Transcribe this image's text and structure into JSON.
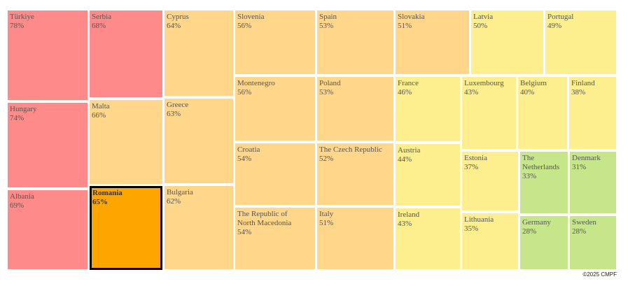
{
  "chart_data": {
    "type": "treemap",
    "selected": "Romania",
    "color_scale": {
      "red": "#ff8a8a",
      "orange_selected": "#ffa500",
      "light_orange": "#ffd68a",
      "yellow": "#fdee8e",
      "green": "#c7e68a"
    },
    "items": [
      {
        "name": "Türkiye",
        "value": 78,
        "label": "78%",
        "color": "#ff8a8a"
      },
      {
        "name": "Hungary",
        "value": 74,
        "label": "74%",
        "color": "#ff8a8a"
      },
      {
        "name": "Albania",
        "value": 69,
        "label": "69%",
        "color": "#ff8a8a"
      },
      {
        "name": "Serbia",
        "value": 68,
        "label": "68%",
        "color": "#ff8a8a"
      },
      {
        "name": "Malta",
        "value": 66,
        "label": "66%",
        "color": "#ffd68a"
      },
      {
        "name": "Romania",
        "value": 65,
        "label": "65%",
        "color": "#ffa500"
      },
      {
        "name": "Cyprus",
        "value": 64,
        "label": "64%",
        "color": "#ffd68a"
      },
      {
        "name": "Greece",
        "value": 63,
        "label": "63%",
        "color": "#ffd68a"
      },
      {
        "name": "Bulgaria",
        "value": 62,
        "label": "62%",
        "color": "#ffd68a"
      },
      {
        "name": "Slovenia",
        "value": 56,
        "label": "56%",
        "color": "#ffd68a"
      },
      {
        "name": "Montenegro",
        "value": 56,
        "label": "56%",
        "color": "#ffd68a"
      },
      {
        "name": "Croatia",
        "value": 54,
        "label": "54%",
        "color": "#ffd68a"
      },
      {
        "name": "The Republic of North Macedonia",
        "value": 54,
        "label": "54%",
        "color": "#ffd68a"
      },
      {
        "name": "Spain",
        "value": 53,
        "label": "53%",
        "color": "#ffd68a"
      },
      {
        "name": "Poland",
        "value": 53,
        "label": "53%",
        "color": "#ffd68a"
      },
      {
        "name": "The Czech Republic",
        "value": 52,
        "label": "52%",
        "color": "#ffd68a"
      },
      {
        "name": "Italy",
        "value": 51,
        "label": "51%",
        "color": "#ffd68a"
      },
      {
        "name": "Slovakia",
        "value": 51,
        "label": "51%",
        "color": "#ffd68a"
      },
      {
        "name": "Latvia",
        "value": 50,
        "label": "50%",
        "color": "#fdee8e"
      },
      {
        "name": "Portugal",
        "value": 49,
        "label": "49%",
        "color": "#fdee8e"
      },
      {
        "name": "France",
        "value": 46,
        "label": "46%",
        "color": "#fdee8e"
      },
      {
        "name": "Austria",
        "value": 44,
        "label": "44%",
        "color": "#fdee8e"
      },
      {
        "name": "Ireland",
        "value": 43,
        "label": "43%",
        "color": "#fdee8e"
      },
      {
        "name": "Luxembourg",
        "value": 43,
        "label": "43%",
        "color": "#fdee8e"
      },
      {
        "name": "Belgium",
        "value": 40,
        "label": "40%",
        "color": "#fdee8e"
      },
      {
        "name": "Finland",
        "value": 38,
        "label": "38%",
        "color": "#fdee8e"
      },
      {
        "name": "Estonia",
        "value": 37,
        "label": "37%",
        "color": "#fdee8e"
      },
      {
        "name": "Lithuania",
        "value": 35,
        "label": "35%",
        "color": "#fdee8e"
      },
      {
        "name": "The Netherlands",
        "value": 33,
        "label": "33%",
        "color": "#c7e68a"
      },
      {
        "name": "Denmark",
        "value": 31,
        "label": "31%",
        "color": "#c7e68a"
      },
      {
        "name": "Germany",
        "value": 28,
        "label": "28%",
        "color": "#c7e68a"
      },
      {
        "name": "Sweden",
        "value": 28,
        "label": "28%",
        "color": "#c7e68a"
      }
    ]
  },
  "credit": "©2025 CMPF"
}
